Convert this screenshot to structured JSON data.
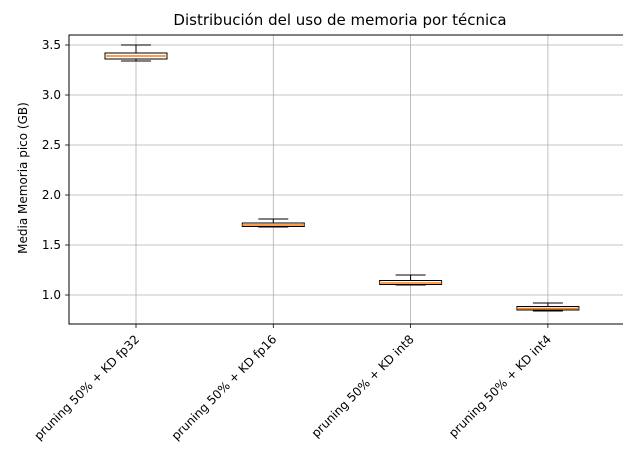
{
  "chart_data": {
    "type": "box",
    "title": "Distribución del uso de memoria por técnica",
    "xlabel": "",
    "ylabel": "Media Memoria pico (GB)",
    "ylim": [
      0.71,
      3.6
    ],
    "yticks": [
      "1.0",
      "1.5",
      "2.0",
      "2.5",
      "3.0",
      "3.5"
    ],
    "grid": true,
    "categories": [
      "pruning 50% + KD fp32",
      "pruning 50% + KD fp16",
      "pruning 50% + KD int8",
      "pruning 50% + KD int4"
    ],
    "boxes": [
      {
        "whisker_low": 3.34,
        "q1": 3.36,
        "median": 3.39,
        "q3": 3.42,
        "whisker_high": 3.5
      },
      {
        "whisker_low": 1.68,
        "q1": 1.685,
        "median": 1.7,
        "q3": 1.72,
        "whisker_high": 1.76
      },
      {
        "whisker_low": 1.1,
        "q1": 1.105,
        "median": 1.12,
        "q3": 1.145,
        "whisker_high": 1.2
      },
      {
        "whisker_low": 0.84,
        "q1": 0.85,
        "median": 0.865,
        "q3": 0.885,
        "whisker_high": 0.92
      }
    ],
    "colors": {
      "box": "#000000",
      "median": "#ff7f0e",
      "grid": "#b0b0b0"
    }
  }
}
